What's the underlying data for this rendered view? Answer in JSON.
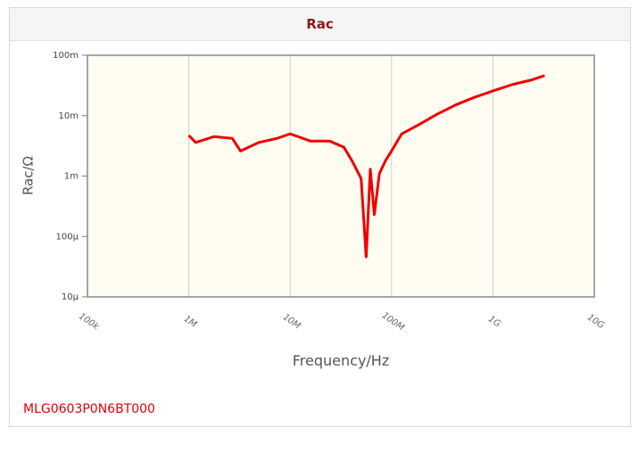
{
  "chart_data": {
    "type": "line",
    "title": "Rac",
    "x_label": "Frequency/Hz",
    "y_label": "Rac/Ω",
    "x_log": true,
    "y_log": true,
    "grid": true,
    "color": "#ee0000",
    "x": [
      1000000,
      1170000,
      1780000,
      2690000,
      3240000,
      4900000,
      7410000,
      10000000,
      15800000,
      24500000,
      33900000,
      40700000,
      50100000,
      56200000,
      61700000,
      67600000,
      75900000,
      87100000,
      100000000,
      126000000,
      186000000,
      282000000,
      427000000,
      631000000,
      1000000000,
      1580000000,
      2340000000,
      3240000000
    ],
    "values": [
      0.0047,
      0.0036,
      0.0045,
      0.0042,
      0.0026,
      0.0036,
      0.0042,
      0.005,
      0.0038,
      0.0038,
      0.003,
      0.0018,
      0.00091,
      4.6e-05,
      0.0013,
      0.00023,
      0.0011,
      0.0018,
      0.0026,
      0.005,
      0.0071,
      0.0106,
      0.015,
      0.0196,
      0.0257,
      0.033,
      0.0386,
      0.046
    ],
    "xlim": [
      100000,
      10000000000
    ],
    "xticks": [
      {
        "value": 100000,
        "label": "100k"
      },
      {
        "value": 1000000,
        "label": "1M"
      },
      {
        "value": 10000000,
        "label": "10M"
      },
      {
        "value": 100000000,
        "label": "100M"
      },
      {
        "value": 1000000000,
        "label": "1G"
      },
      {
        "value": 10000000000,
        "label": "10G"
      }
    ],
    "ylim": [
      1e-05,
      0.1
    ],
    "yticks": [
      {
        "value": 1e-05,
        "label": "10μ"
      },
      {
        "value": 0.0001,
        "label": "100μ"
      },
      {
        "value": 0.001,
        "label": "1m"
      },
      {
        "value": 0.01,
        "label": "10m"
      },
      {
        "value": 0.1,
        "label": "100m"
      }
    ]
  },
  "part_number": "MLG0603P0N6BT000"
}
